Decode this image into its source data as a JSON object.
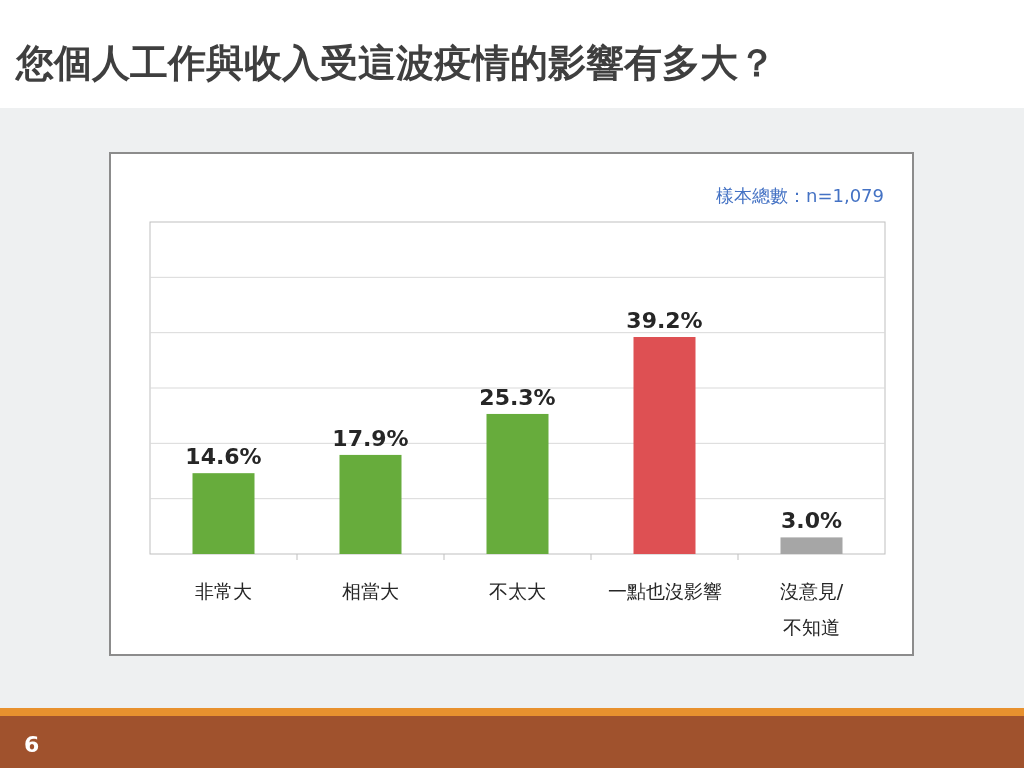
{
  "chart_data": {
    "type": "bar",
    "title": "您個人工作與收入受這波疫情的影響有多大？",
    "categories": [
      "非常大",
      "相當大",
      "不太大",
      "一點也沒影響",
      "沒意見/不知道"
    ],
    "values": [
      14.6,
      17.9,
      25.3,
      39.2,
      3.0
    ],
    "value_labels": [
      "14.6%",
      "17.9%",
      "25.3%",
      "39.2%",
      "3.0%"
    ],
    "colors": [
      "#67ac3c",
      "#67ac3c",
      "#67ac3c",
      "#de5053",
      "#a6a6a6"
    ],
    "tick_labels": "x",
    "grid": "y",
    "annotations": [
      "樣本總數：n=1,079",
      "6"
    ]
  }
}
